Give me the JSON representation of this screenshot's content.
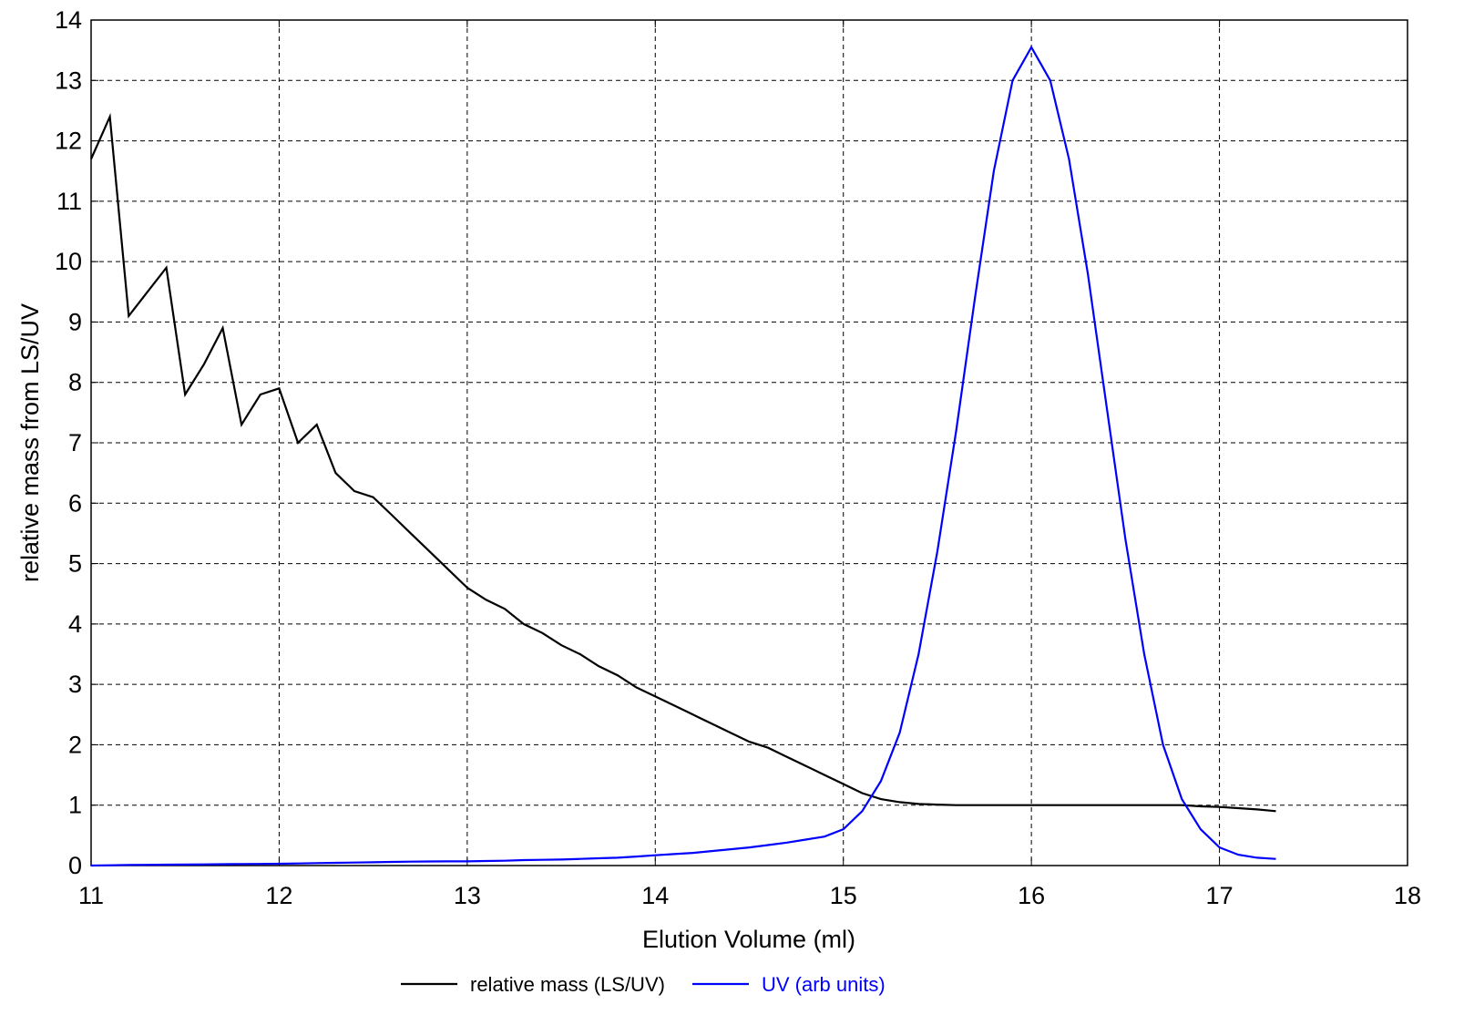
{
  "chart_data": {
    "type": "line",
    "xlabel": "Elution Volume (ml)",
    "ylabel": "relative mass from LS/UV",
    "x": [
      11.0,
      11.1,
      11.2,
      11.3,
      11.4,
      11.5,
      11.6,
      11.7,
      11.8,
      11.9,
      12.0,
      12.1,
      12.2,
      12.3,
      12.4,
      12.5,
      12.6,
      12.7,
      12.8,
      12.9,
      13.0,
      13.1,
      13.2,
      13.3,
      13.4,
      13.5,
      13.6,
      13.7,
      13.8,
      13.9,
      14.0,
      14.1,
      14.2,
      14.3,
      14.4,
      14.5,
      14.6,
      14.7,
      14.8,
      14.9,
      15.0,
      15.1,
      15.2,
      15.3,
      15.4,
      15.5,
      15.6,
      15.7,
      15.8,
      15.9,
      16.0,
      16.1,
      16.2,
      16.3,
      16.4,
      16.5,
      16.6,
      16.7,
      16.8,
      16.9,
      17.0,
      17.1,
      17.2,
      17.3
    ],
    "series": [
      {
        "name": "relative mass (LS/UV)",
        "color": "#000000",
        "values": [
          11.7,
          12.4,
          9.1,
          9.5,
          9.9,
          7.8,
          8.3,
          8.9,
          7.3,
          7.8,
          7.9,
          7.0,
          7.3,
          6.5,
          6.2,
          6.1,
          5.8,
          5.5,
          5.2,
          4.9,
          4.6,
          4.4,
          4.25,
          4.0,
          3.85,
          3.65,
          3.5,
          3.3,
          3.15,
          2.95,
          2.8,
          2.65,
          2.5,
          2.35,
          2.2,
          2.05,
          1.95,
          1.8,
          1.65,
          1.5,
          1.35,
          1.2,
          1.1,
          1.05,
          1.02,
          1.01,
          1.0,
          1.0,
          1.0,
          1.0,
          1.0,
          1.0,
          1.0,
          1.0,
          1.0,
          1.0,
          1.0,
          1.0,
          1.0,
          0.98,
          0.97,
          0.95,
          0.93,
          0.9
        ]
      },
      {
        "name": "UV (arb units)",
        "color": "#0000ff",
        "values": [
          0.0,
          0.005,
          0.01,
          0.012,
          0.015,
          0.017,
          0.02,
          0.022,
          0.025,
          0.027,
          0.03,
          0.035,
          0.04,
          0.045,
          0.05,
          0.055,
          0.06,
          0.065,
          0.068,
          0.07,
          0.07,
          0.075,
          0.08,
          0.09,
          0.095,
          0.1,
          0.11,
          0.12,
          0.13,
          0.15,
          0.17,
          0.19,
          0.21,
          0.24,
          0.27,
          0.3,
          0.34,
          0.38,
          0.43,
          0.48,
          0.6,
          0.9,
          1.4,
          2.2,
          3.5,
          5.2,
          7.2,
          9.4,
          11.5,
          13.0,
          13.55,
          13.0,
          11.7,
          9.8,
          7.6,
          5.4,
          3.5,
          2.0,
          1.1,
          0.6,
          0.3,
          0.18,
          0.13,
          0.11
        ]
      }
    ],
    "xlim": [
      11,
      18
    ],
    "xticks": [
      11,
      12,
      13,
      14,
      15,
      16,
      17,
      18
    ],
    "ylim": [
      0,
      14
    ],
    "yticks": [
      0,
      1,
      2,
      3,
      4,
      5,
      6,
      7,
      8,
      9,
      10,
      11,
      12,
      13,
      14
    ],
    "grid": true,
    "legend": "bottom"
  }
}
